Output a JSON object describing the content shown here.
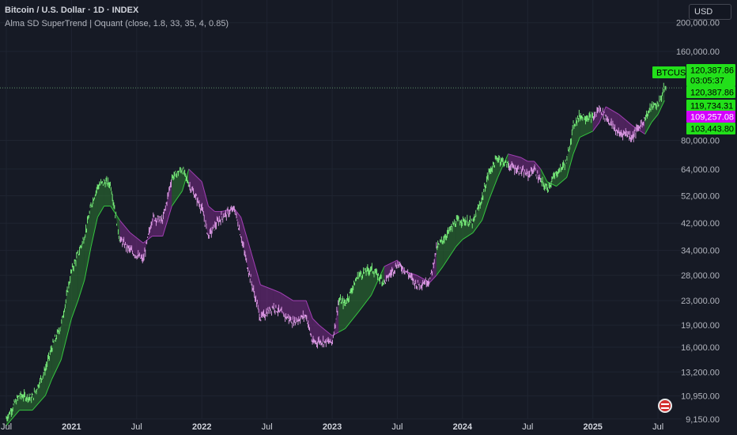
{
  "header": {
    "title": "Bitcoin / U.S. Dollar · 1D · INDEX",
    "indicator": "Alma SD SuperTrend | Oquant (close, 1.8, 33, 35, 4, 0.85)"
  },
  "currency_button": "USD",
  "price_labels": {
    "symbol": "BTCUSD",
    "last": "120,387.86",
    "countdown": "03:05:37",
    "close": "120,387.86",
    "upper": "119,734.31",
    "trend": "109,257.08",
    "lower": "103,443.80"
  },
  "colors": {
    "background": "#161a25",
    "bull": "#7cf57e",
    "bear": "#e6a0ee",
    "bull_band": "#2d7a33",
    "bear_band": "#7b2c8a",
    "label_green": "#22e01a",
    "label_magenta": "#d400ff"
  },
  "chart_data": {
    "type": "line",
    "title": "Bitcoin / U.S. Dollar · 1D · INDEX",
    "scale": "log",
    "ylim": [
      8700,
      230000
    ],
    "y_ticks": [
      "200,000.00",
      "160,000.00",
      "80,000.00",
      "64,000.00",
      "52,000.00",
      "42,000.00",
      "34,000.00",
      "28,000.00",
      "23,000.00",
      "19,000.00",
      "16,000.00",
      "13,200.00",
      "10,950.00",
      "9,150.00"
    ],
    "x_ticks": [
      "Jul",
      "2021",
      "Jul",
      "2022",
      "Jul",
      "2023",
      "Jul",
      "2024",
      "Jul",
      "2025",
      "Jul"
    ],
    "series": [
      {
        "name": "BTCUSD",
        "x": [
          2020.5,
          2020.6,
          2020.7,
          2020.8,
          2020.85,
          2020.92,
          2021.0,
          2021.05,
          2021.1,
          2021.15,
          2021.2,
          2021.25,
          2021.3,
          2021.37,
          2021.45,
          2021.55,
          2021.62,
          2021.7,
          2021.77,
          2021.85,
          2021.9,
          2022.0,
          2022.05,
          2022.1,
          2022.15,
          2022.25,
          2022.3,
          2022.35,
          2022.45,
          2022.55,
          2022.6,
          2022.7,
          2022.8,
          2022.85,
          2022.9,
          2023.0,
          2023.05,
          2023.1,
          2023.2,
          2023.3,
          2023.4,
          2023.5,
          2023.55,
          2023.65,
          2023.75,
          2023.8,
          2023.85,
          2023.95,
          2024.0,
          2024.08,
          2024.15,
          2024.2,
          2024.27,
          2024.35,
          2024.45,
          2024.5,
          2024.55,
          2024.6,
          2024.65,
          2024.72,
          2024.8,
          2024.85,
          2024.9,
          2025.0,
          2025.05,
          2025.1,
          2025.2,
          2025.25,
          2025.3,
          2025.4,
          2025.45,
          2025.5,
          2025.55
        ],
        "values": [
          9200,
          11000,
          10800,
          13500,
          16000,
          19000,
          29000,
          33000,
          38000,
          48000,
          56000,
          58000,
          57000,
          37000,
          34000,
          31500,
          44000,
          43000,
          60000,
          64000,
          57000,
          47000,
          38000,
          41000,
          44000,
          47000,
          38000,
          30000,
          20000,
          22000,
          21000,
          19500,
          20500,
          16500,
          16800,
          16600,
          23000,
          22500,
          28000,
          29500,
          26500,
          30500,
          29500,
          26000,
          27000,
          34500,
          37000,
          42500,
          43000,
          42000,
          51000,
          62000,
          70000,
          66000,
          63000,
          61000,
          64000,
          58000,
          55000,
          62000,
          68000,
          90000,
          97000,
          95000,
          103000,
          96000,
          84000,
          85000,
          82000,
          95000,
          104000,
          106000,
          120387.86
        ]
      },
      {
        "name": "Alma SD SuperTrend",
        "x": [
          2020.5,
          2020.6,
          2020.7,
          2020.8,
          2020.85,
          2020.92,
          2021.0,
          2021.05,
          2021.1,
          2021.15,
          2021.2,
          2021.25,
          2021.3,
          2021.37,
          2021.45,
          2021.55,
          2021.62,
          2021.7,
          2021.77,
          2021.85,
          2021.9,
          2022.0,
          2022.05,
          2022.1,
          2022.15,
          2022.25,
          2022.3,
          2022.35,
          2022.45,
          2022.55,
          2022.6,
          2022.7,
          2022.8,
          2022.85,
          2022.9,
          2023.0,
          2023.05,
          2023.1,
          2023.2,
          2023.3,
          2023.4,
          2023.5,
          2023.55,
          2023.65,
          2023.75,
          2023.8,
          2023.85,
          2023.95,
          2024.0,
          2024.08,
          2024.15,
          2024.2,
          2024.27,
          2024.35,
          2024.45,
          2024.5,
          2024.55,
          2024.6,
          2024.65,
          2024.72,
          2024.8,
          2024.85,
          2024.9,
          2025.0,
          2025.05,
          2025.1,
          2025.2,
          2025.25,
          2025.3,
          2025.4,
          2025.45,
          2025.5,
          2025.55
        ],
        "values": [
          8700,
          9800,
          9800,
          11000,
          12500,
          14500,
          20000,
          23000,
          27000,
          35000,
          44000,
          48000,
          48000,
          43000,
          39000,
          36000,
          38000,
          38000,
          48000,
          54000,
          64000,
          58000,
          48000,
          46000,
          46000,
          47000,
          44000,
          37000,
          26000,
          25000,
          24500,
          23000,
          23000,
          20000,
          19000,
          17500,
          18000,
          18500,
          21000,
          24000,
          30000,
          31500,
          29000,
          28000,
          26500,
          28000,
          30000,
          35000,
          37000,
          39000,
          43000,
          50000,
          60000,
          72000,
          70000,
          68000,
          68000,
          64000,
          58000,
          56000,
          60000,
          72000,
          82000,
          86000,
          92000,
          104000,
          98000,
          94000,
          90000,
          84000,
          92000,
          98000,
          109257.08
        ],
        "trend": [
          "bull",
          "bull",
          "bull",
          "bull",
          "bull",
          "bull",
          "bull",
          "bull",
          "bull",
          "bull",
          "bull",
          "bull",
          "bull",
          "bear",
          "bear",
          "bear",
          "bear",
          "bear",
          "bull",
          "bull",
          "bear",
          "bear",
          "bear",
          "bear",
          "bear",
          "bear",
          "bear",
          "bear",
          "bear",
          "bear",
          "bear",
          "bear",
          "bear",
          "bear",
          "bear",
          "bear",
          "bull",
          "bull",
          "bull",
          "bull",
          "bear",
          "bear",
          "bear",
          "bear",
          "bear",
          "bull",
          "bull",
          "bull",
          "bull",
          "bull",
          "bull",
          "bull",
          "bull",
          "bear",
          "bear",
          "bear",
          "bear",
          "bull",
          "bull",
          "bull",
          "bull",
          "bull",
          "bull",
          "bear",
          "bear",
          "bear",
          "bear",
          "bear",
          "bear",
          "bull",
          "bull",
          "bull",
          "bull"
        ]
      }
    ]
  }
}
